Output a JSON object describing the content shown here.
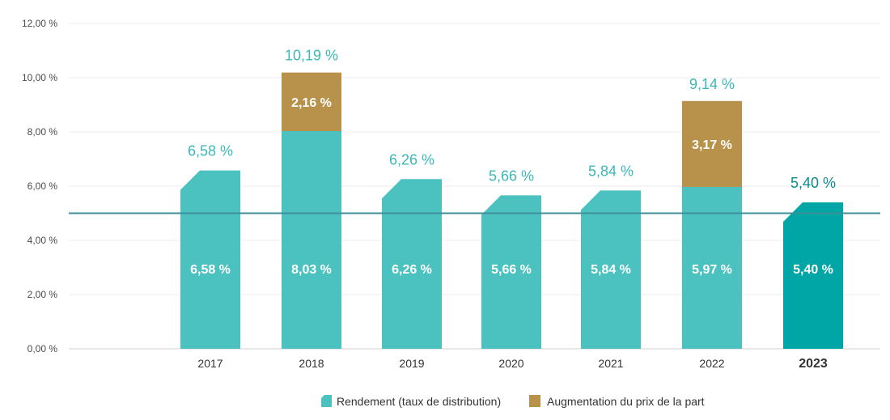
{
  "chart_data": {
    "type": "bar",
    "stacked": true,
    "categories": [
      "2017",
      "2018",
      "2019",
      "2020",
      "2021",
      "2022",
      "2023"
    ],
    "highlight_category": "2023",
    "series": [
      {
        "name": "Rendement (taux de distribution)",
        "values": [
          6.58,
          8.03,
          6.26,
          5.66,
          5.84,
          5.97,
          5.4
        ],
        "labels": [
          "6,58 %",
          "8,03 %",
          "6,26 %",
          "5,66 %",
          "5,84 %",
          "5,97 %",
          "5,40 %"
        ]
      },
      {
        "name": "Augmentation du prix de la part",
        "values": [
          0,
          2.16,
          0,
          0,
          0,
          3.17,
          0
        ],
        "labels": [
          "",
          "2,16 %",
          "",
          "",
          "",
          "3,17 %",
          ""
        ]
      }
    ],
    "totals": [
      "6,58 %",
      "10,19 %",
      "6,26 %",
      "5,66 %",
      "5,84 %",
      "9,14 %",
      "5,40 %"
    ],
    "ylim": [
      0,
      12
    ],
    "yticks": [
      "0,00 %",
      "2,00 %",
      "4,00 %",
      "6,00 %",
      "8,00 %",
      "10,00 %",
      "12,00 %"
    ],
    "reference_line_value": 5.0,
    "grid": true,
    "legend_position": "bottom",
    "colors": {
      "rendement": "#4bc2c0",
      "rendement_highlight": "#00a6a5",
      "augmentation": "#b8924a",
      "total_label": "#3bb8b6",
      "highlight_text": "#0a8d8c",
      "reference_line": "#3e8f99",
      "grid": "#ececec"
    }
  }
}
